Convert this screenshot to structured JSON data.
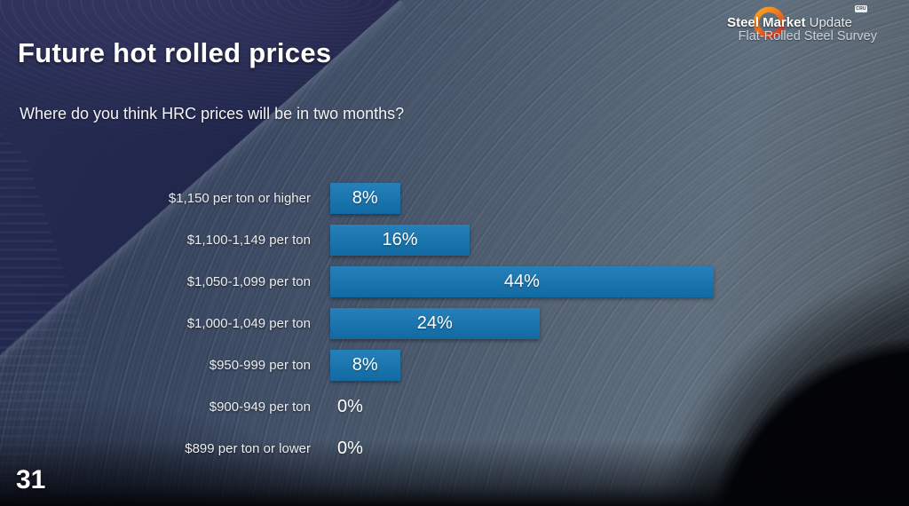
{
  "slide": {
    "title": "Future hot rolled prices",
    "question": "Where do you think HRC prices will be in two months?",
    "page_number": "31"
  },
  "logo": {
    "brand_bold": "Steel Market",
    "brand_light": " Update",
    "badge": "CRU",
    "subtitle": "Flat-Rolled Steel Survey"
  },
  "chart_data": {
    "type": "bar",
    "orientation": "horizontal",
    "title": "Where do you think HRC prices will be in two months?",
    "categories": [
      "$1,150 per ton or higher",
      "$1,100-1,149 per ton",
      "$1,050-1,099 per ton",
      "$1,000-1,049 per ton",
      "$950-999 per ton",
      "$900-949 per ton",
      "$899 per ton or lower"
    ],
    "values": [
      8,
      16,
      44,
      24,
      8,
      0,
      0
    ],
    "value_labels": [
      "8%",
      "16%",
      "44%",
      "24%",
      "8%",
      "0%",
      "0%"
    ],
    "xlabel": "",
    "ylabel": "",
    "xlim": [
      0,
      64
    ],
    "grid": false,
    "legend": false,
    "bar_color": "#1376b4"
  },
  "colors": {
    "accent_blue": "#1376b4",
    "background_navy": "#1c2142",
    "steel_gray": "#5a6979",
    "text_white": "#ffffff"
  }
}
